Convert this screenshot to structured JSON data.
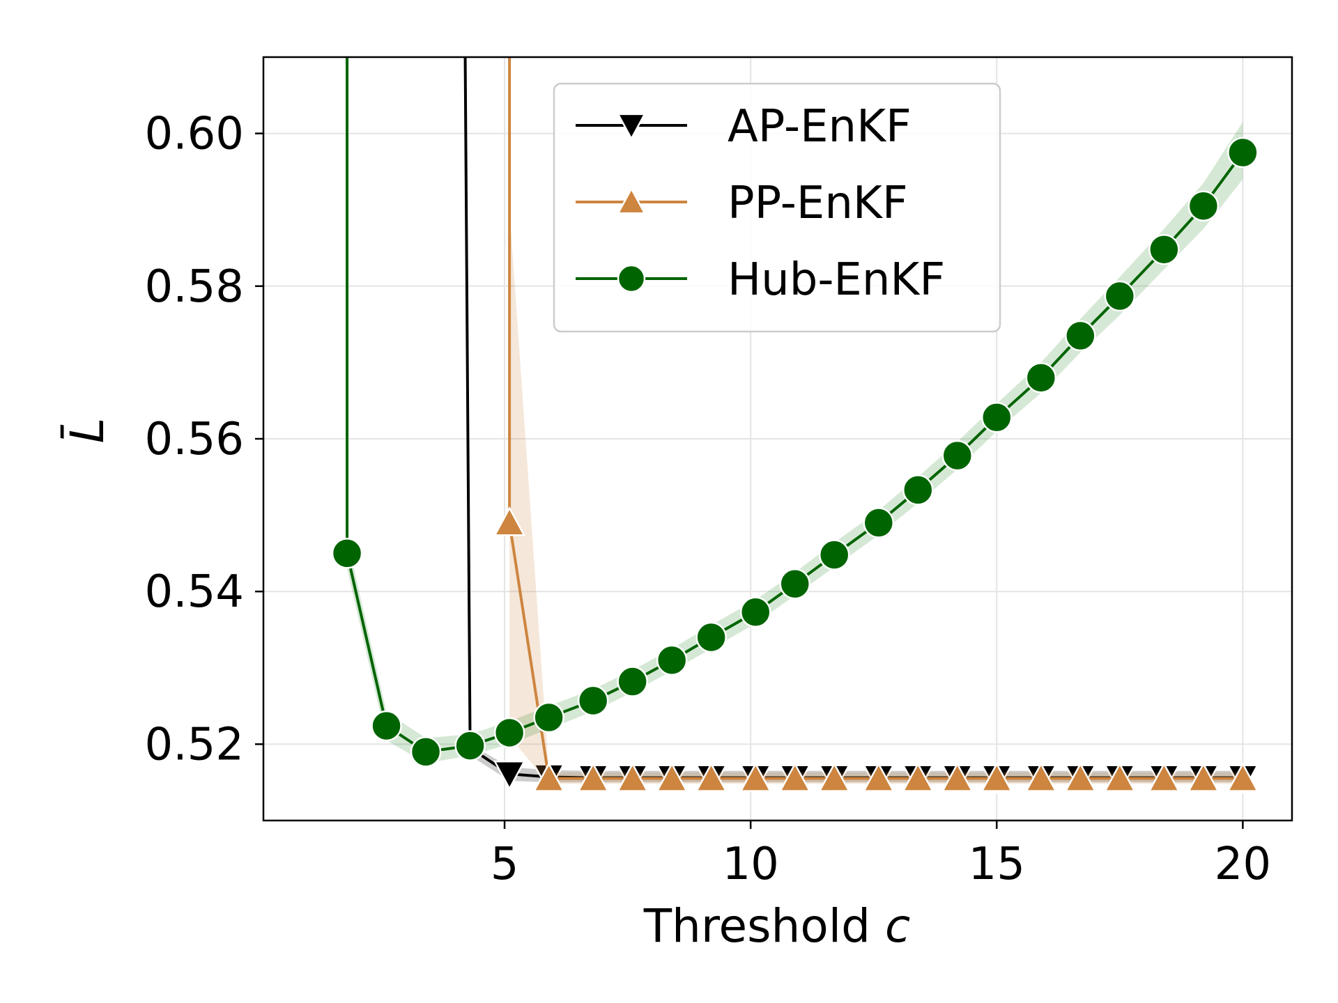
{
  "chart_data": {
    "type": "line",
    "xlabel": "Threshold",
    "xlabel_var": "c",
    "ylabel": "L̄",
    "xlim": [
      0.1,
      21.0
    ],
    "ylim": [
      0.51,
      0.61
    ],
    "xticks": [
      5,
      10,
      15,
      20
    ],
    "yticks": [
      0.52,
      0.54,
      0.56,
      0.58,
      0.6
    ],
    "xtick_labels": [
      "5",
      "10",
      "15",
      "20"
    ],
    "ytick_labels": [
      "0.52",
      "0.54",
      "0.56",
      "0.58",
      "0.60"
    ],
    "grid": true,
    "legend_position": "top-center",
    "series": [
      {
        "name": "AP-EnKF",
        "color": "#000000",
        "band_color": "#000000",
        "marker": "triangle-down",
        "x": [
          4.2,
          4.3,
          5.1,
          5.9,
          6.8,
          7.6,
          8.4,
          9.2,
          10.1,
          10.9,
          11.7,
          12.6,
          13.4,
          14.2,
          15.0,
          15.9,
          16.7,
          17.5,
          18.4,
          19.2,
          20.0
        ],
        "y": [
          0.61,
          0.5195,
          0.5161,
          0.5157,
          0.5156,
          0.5156,
          0.5156,
          0.5156,
          0.5156,
          0.5156,
          0.5156,
          0.5156,
          0.5156,
          0.5156,
          0.5156,
          0.5156,
          0.5156,
          0.5156,
          0.5156,
          0.5156,
          0.5156
        ],
        "y_low": [
          0.61,
          0.5185,
          0.5152,
          0.515,
          0.515,
          0.515,
          0.515,
          0.515,
          0.515,
          0.515,
          0.515,
          0.515,
          0.515,
          0.515,
          0.515,
          0.515,
          0.515,
          0.515,
          0.515,
          0.515,
          0.515
        ],
        "y_high": [
          0.61,
          0.52,
          0.517,
          0.5166,
          0.5165,
          0.5165,
          0.5165,
          0.5165,
          0.5165,
          0.5165,
          0.5165,
          0.5165,
          0.5165,
          0.5165,
          0.5165,
          0.5165,
          0.5165,
          0.5165,
          0.5165,
          0.5165,
          0.5165
        ],
        "marker_start_index": 2
      },
      {
        "name": "PP-EnKF",
        "color": "#cd853f",
        "band_color": "#cd853f",
        "marker": "triangle-up",
        "x": [
          5.1,
          5.1,
          5.9,
          6.8,
          7.6,
          8.4,
          9.2,
          10.1,
          10.9,
          11.7,
          12.6,
          13.4,
          14.2,
          15.0,
          15.9,
          16.7,
          17.5,
          18.4,
          19.2,
          20.0
        ],
        "y": [
          0.61,
          0.549,
          0.5155,
          0.5155,
          0.5155,
          0.5155,
          0.5155,
          0.5155,
          0.5155,
          0.5155,
          0.5155,
          0.5155,
          0.5155,
          0.5155,
          0.5155,
          0.5155,
          0.5155,
          0.5155,
          0.5155,
          0.5155
        ],
        "y_low": [
          0.61,
          0.521,
          0.5148,
          0.5148,
          0.5148,
          0.5148,
          0.5148,
          0.5148,
          0.5148,
          0.5148,
          0.5148,
          0.5148,
          0.5148,
          0.5148,
          0.5148,
          0.5148,
          0.5148,
          0.5148,
          0.5148,
          0.5148
        ],
        "y_high": [
          0.61,
          0.59,
          0.5163,
          0.5163,
          0.5163,
          0.5163,
          0.5163,
          0.5163,
          0.5163,
          0.5163,
          0.5163,
          0.5163,
          0.5163,
          0.5163,
          0.5163,
          0.5163,
          0.5163,
          0.5163,
          0.5163,
          0.5163
        ],
        "marker_start_index": 1
      },
      {
        "name": "Hub-EnKF",
        "color": "#006400",
        "band_color": "#2e8b2e",
        "marker": "circle",
        "x": [
          1.8,
          1.8,
          2.6,
          3.4,
          4.3,
          5.1,
          5.9,
          6.8,
          7.6,
          8.4,
          9.2,
          10.1,
          10.9,
          11.7,
          12.6,
          13.4,
          14.2,
          15.0,
          15.9,
          16.7,
          17.5,
          18.4,
          19.2,
          20.0
        ],
        "y": [
          0.61,
          0.545,
          0.5224,
          0.519,
          0.5198,
          0.5215,
          0.5235,
          0.5257,
          0.5282,
          0.531,
          0.534,
          0.5373,
          0.541,
          0.5448,
          0.549,
          0.5533,
          0.5578,
          0.5628,
          0.568,
          0.5735,
          0.5787,
          0.5848,
          0.5905,
          0.5975
        ],
        "y_low": [
          0.61,
          0.543,
          0.5205,
          0.5175,
          0.5185,
          0.52,
          0.522,
          0.5243,
          0.5268,
          0.5296,
          0.5325,
          0.5358,
          0.5395,
          0.5432,
          0.5474,
          0.5516,
          0.556,
          0.561,
          0.566,
          0.5713,
          0.5762,
          0.5822,
          0.5875,
          0.594
        ],
        "y_high": [
          0.61,
          0.547,
          0.5242,
          0.5208,
          0.5213,
          0.523,
          0.525,
          0.5272,
          0.5297,
          0.5325,
          0.5356,
          0.5389,
          0.5425,
          0.5464,
          0.5506,
          0.555,
          0.5596,
          0.5646,
          0.57,
          0.5757,
          0.5812,
          0.5875,
          0.5935,
          0.6015
        ],
        "marker_start_index": 1
      }
    ]
  }
}
